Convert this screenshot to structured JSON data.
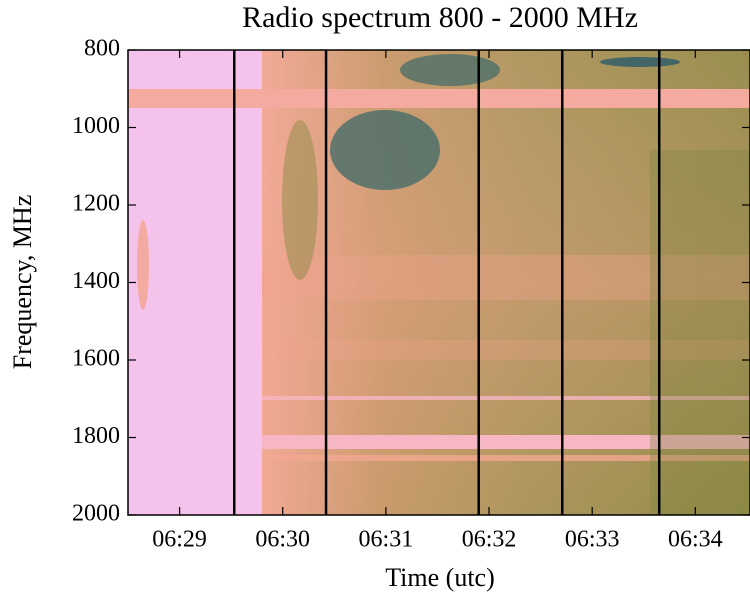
{
  "chart_data": {
    "type": "heatmap",
    "title": "Radio spectrum 800 - 2000 MHz",
    "xlabel": "Time (utc)",
    "ylabel": "Frequency, MHz",
    "xlim": [
      388.5,
      394.53
    ],
    "xticks": [
      {
        "value": 389,
        "label": "06:29"
      },
      {
        "value": 390,
        "label": "06:30"
      },
      {
        "value": 391,
        "label": "06:31"
      },
      {
        "value": 392,
        "label": "06:32"
      },
      {
        "value": 393,
        "label": "06:33"
      },
      {
        "value": 394,
        "label": "06:34"
      }
    ],
    "ylim": [
      2000,
      800
    ],
    "yticks": [
      800,
      1000,
      1200,
      1400,
      1600,
      1800,
      2000
    ],
    "y_inverted": true,
    "vlines": [
      389.53,
      390.42,
      391.9,
      392.71,
      393.65
    ],
    "vline_color": "#000000"
  }
}
